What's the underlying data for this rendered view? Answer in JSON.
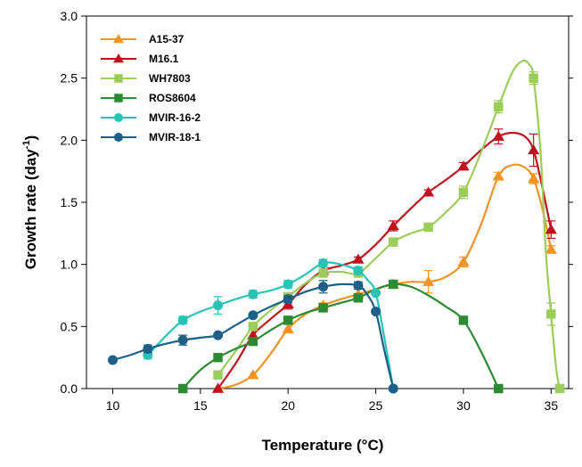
{
  "chart_data": {
    "type": "line",
    "title": "",
    "xlabel": "Temperature (°C)",
    "ylabel": "Growth rate (day",
    "ylabel_sup": "-1",
    "ylabel_close": ")",
    "xlim": [
      8.5,
      36
    ],
    "ylim": [
      0,
      3.0
    ],
    "xticks": [
      10,
      15,
      20,
      25,
      30,
      35
    ],
    "xtick_labels": [
      "10",
      "15",
      "20",
      "25",
      "30",
      "35"
    ],
    "yticks": [
      0,
      0.5,
      1.0,
      1.5,
      2.0,
      2.5,
      3.0
    ],
    "ytick_labels": [
      "0.0",
      "0.5",
      "1.0",
      "1.5",
      "2.0",
      "2.5",
      "3.0"
    ],
    "grid": false,
    "legend_position": "top-left",
    "series": [
      {
        "name": "A15-37",
        "color": "#f39322",
        "marker": "triangle",
        "points": [
          [
            16,
            0.0
          ],
          [
            18,
            0.11
          ],
          [
            20,
            0.48
          ],
          [
            22,
            0.67
          ],
          [
            24,
            0.76
          ],
          [
            26,
            0.84
          ],
          [
            28,
            0.86
          ],
          [
            30,
            1.02
          ],
          [
            32,
            1.71
          ],
          [
            34,
            1.69
          ],
          [
            35,
            1.12
          ]
        ],
        "errors": [
          0,
          0,
          0,
          0.02,
          0,
          0.02,
          0.09,
          0.04,
          0.03,
          0.04,
          0.03
        ],
        "curve": [
          [
            16,
            0.0
          ],
          [
            17,
            0.03
          ],
          [
            18,
            0.11
          ],
          [
            19,
            0.28
          ],
          [
            20,
            0.48
          ],
          [
            21,
            0.6
          ],
          [
            22,
            0.67
          ],
          [
            23,
            0.72
          ],
          [
            24,
            0.76
          ],
          [
            25,
            0.8
          ],
          [
            26,
            0.84
          ],
          [
            27,
            0.86
          ],
          [
            28,
            0.86
          ],
          [
            29,
            0.9
          ],
          [
            30,
            1.02
          ],
          [
            31,
            1.32
          ],
          [
            32,
            1.71
          ],
          [
            32.8,
            1.8
          ],
          [
            33.5,
            1.78
          ],
          [
            34,
            1.69
          ],
          [
            34.5,
            1.45
          ],
          [
            35,
            1.12
          ]
        ]
      },
      {
        "name": "M16.1",
        "color": "#c0101e",
        "marker": "triangle",
        "points": [
          [
            16,
            0.0
          ],
          [
            18,
            0.43
          ],
          [
            20,
            0.68
          ],
          [
            22,
            0.95
          ],
          [
            24,
            1.04
          ],
          [
            26,
            1.31
          ],
          [
            28,
            1.58
          ],
          [
            30,
            1.79
          ],
          [
            32,
            2.03
          ],
          [
            34,
            1.92
          ],
          [
            35,
            1.28
          ]
        ],
        "errors": [
          0,
          0.04,
          0.04,
          0.03,
          0.02,
          0.04,
          0.02,
          0.03,
          0.06,
          0.13,
          0.07
        ],
        "curve": [
          [
            16,
            0.0
          ],
          [
            17,
            0.2
          ],
          [
            18,
            0.43
          ],
          [
            19,
            0.56
          ],
          [
            20,
            0.68
          ],
          [
            21,
            0.84
          ],
          [
            22,
            0.95
          ],
          [
            23,
            0.99
          ],
          [
            24,
            1.04
          ],
          [
            25,
            1.16
          ],
          [
            26,
            1.31
          ],
          [
            27,
            1.45
          ],
          [
            28,
            1.58
          ],
          [
            29,
            1.68
          ],
          [
            30,
            1.79
          ],
          [
            31,
            1.92
          ],
          [
            32,
            2.03
          ],
          [
            32.8,
            2.06
          ],
          [
            33.5,
            2.03
          ],
          [
            34,
            1.92
          ],
          [
            34.5,
            1.62
          ],
          [
            35,
            1.28
          ]
        ]
      },
      {
        "name": "WH7803",
        "color": "#9ccc5a",
        "marker": "square",
        "points": [
          [
            16,
            0.11
          ],
          [
            18,
            0.5
          ],
          [
            20,
            0.74
          ],
          [
            22,
            0.93
          ],
          [
            24,
            0.93
          ],
          [
            26,
            1.18
          ],
          [
            28,
            1.3
          ],
          [
            30,
            1.58
          ],
          [
            32,
            2.27
          ],
          [
            34,
            2.5
          ],
          [
            35,
            0.6
          ],
          [
            35.5,
            0.0
          ]
        ],
        "errors": [
          0,
          0,
          0,
          0,
          0,
          0.02,
          0.02,
          0.05,
          0.05,
          0.05,
          0.09,
          0
        ],
        "curve": [
          [
            16,
            0.11
          ],
          [
            17,
            0.3
          ],
          [
            18,
            0.5
          ],
          [
            19,
            0.63
          ],
          [
            20,
            0.74
          ],
          [
            21,
            0.85
          ],
          [
            22,
            0.93
          ],
          [
            23,
            0.94
          ],
          [
            24,
            0.93
          ],
          [
            25,
            1.05
          ],
          [
            26,
            1.18
          ],
          [
            27,
            1.25
          ],
          [
            28,
            1.3
          ],
          [
            29,
            1.42
          ],
          [
            30,
            1.58
          ],
          [
            31,
            1.9
          ],
          [
            32,
            2.27
          ],
          [
            32.8,
            2.55
          ],
          [
            33.4,
            2.64
          ],
          [
            33.8,
            2.6
          ],
          [
            34,
            2.5
          ],
          [
            34.4,
            1.9
          ],
          [
            34.7,
            1.1
          ],
          [
            35,
            0.6
          ],
          [
            35.3,
            0.15
          ],
          [
            35.5,
            0.0
          ]
        ]
      },
      {
        "name": "ROS8604",
        "color": "#2c8a32",
        "marker": "square",
        "points": [
          [
            14,
            0.0
          ],
          [
            16,
            0.25
          ],
          [
            18,
            0.38
          ],
          [
            20,
            0.55
          ],
          [
            22,
            0.65
          ],
          [
            24,
            0.73
          ],
          [
            26,
            0.84
          ],
          [
            30,
            0.55
          ],
          [
            32,
            0.0
          ]
        ],
        "errors": [
          0,
          0,
          0,
          0,
          0.02,
          0.02,
          0,
          0,
          0
        ],
        "curve": [
          [
            14,
            0.0
          ],
          [
            15,
            0.15
          ],
          [
            16,
            0.25
          ],
          [
            17,
            0.32
          ],
          [
            18,
            0.38
          ],
          [
            19,
            0.47
          ],
          [
            20,
            0.55
          ],
          [
            21,
            0.61
          ],
          [
            22,
            0.65
          ],
          [
            23,
            0.69
          ],
          [
            24,
            0.73
          ],
          [
            25,
            0.8
          ],
          [
            26,
            0.84
          ],
          [
            27,
            0.82
          ],
          [
            28,
            0.75
          ],
          [
            29,
            0.66
          ],
          [
            30,
            0.55
          ],
          [
            31,
            0.3
          ],
          [
            32,
            0.0
          ]
        ]
      },
      {
        "name": "MVIR-16-2",
        "color": "#27c4b6",
        "marker": "circle",
        "points": [
          [
            12,
            0.27
          ],
          [
            14,
            0.55
          ],
          [
            16,
            0.67
          ],
          [
            18,
            0.76
          ],
          [
            20,
            0.84
          ],
          [
            22,
            1.01
          ],
          [
            24,
            0.95
          ],
          [
            25,
            0.77
          ],
          [
            26,
            0.0
          ]
        ],
        "errors": [
          0.03,
          0.03,
          0.07,
          0.03,
          0.03,
          0.03,
          0.03,
          0,
          0
        ],
        "curve": [
          [
            12,
            0.27
          ],
          [
            13,
            0.42
          ],
          [
            14,
            0.55
          ],
          [
            15,
            0.62
          ],
          [
            16,
            0.67
          ],
          [
            17,
            0.72
          ],
          [
            18,
            0.76
          ],
          [
            19,
            0.79
          ],
          [
            20,
            0.84
          ],
          [
            21,
            0.92
          ],
          [
            22,
            1.01
          ],
          [
            23,
            1.0
          ],
          [
            24,
            0.95
          ],
          [
            24.5,
            0.88
          ],
          [
            25,
            0.77
          ],
          [
            25.5,
            0.4
          ],
          [
            26,
            0.0
          ]
        ]
      },
      {
        "name": "MVIR-18-1",
        "color": "#1d5f87",
        "marker": "circle",
        "points": [
          [
            10,
            0.23
          ],
          [
            12,
            0.32
          ],
          [
            14,
            0.39
          ],
          [
            16,
            0.43
          ],
          [
            18,
            0.59
          ],
          [
            20,
            0.72
          ],
          [
            22,
            0.82
          ],
          [
            24,
            0.83
          ],
          [
            25,
            0.62
          ],
          [
            26,
            0.0
          ]
        ],
        "errors": [
          0,
          0.03,
          0.04,
          0,
          0,
          0.03,
          0.05,
          0.03,
          0,
          0
        ],
        "curve": [
          [
            10,
            0.23
          ],
          [
            11,
            0.27
          ],
          [
            12,
            0.32
          ],
          [
            13,
            0.36
          ],
          [
            14,
            0.39
          ],
          [
            15,
            0.41
          ],
          [
            16,
            0.43
          ],
          [
            17,
            0.51
          ],
          [
            18,
            0.59
          ],
          [
            19,
            0.66
          ],
          [
            20,
            0.72
          ],
          [
            21,
            0.78
          ],
          [
            22,
            0.82
          ],
          [
            23,
            0.84
          ],
          [
            24,
            0.83
          ],
          [
            24.5,
            0.76
          ],
          [
            25,
            0.62
          ],
          [
            25.5,
            0.3
          ],
          [
            26,
            0.0
          ]
        ]
      }
    ]
  }
}
